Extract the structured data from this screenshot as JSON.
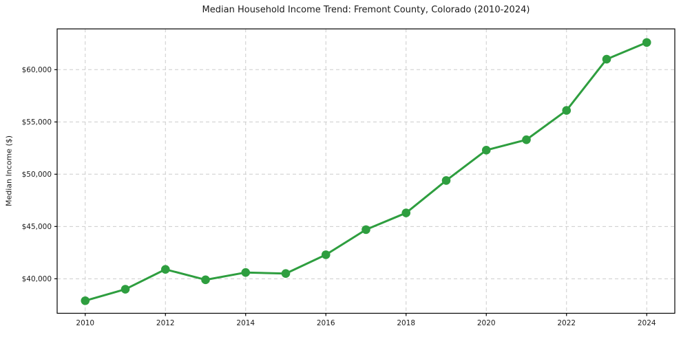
{
  "chart_data": {
    "type": "line",
    "title": "Median Household Income Trend: Fremont County, Colorado (2010-2024)",
    "xlabel": "",
    "ylabel": "Median Income ($)",
    "x": [
      2010,
      2011,
      2012,
      2013,
      2014,
      2015,
      2016,
      2017,
      2018,
      2019,
      2020,
      2021,
      2022,
      2023,
      2024
    ],
    "y": [
      37900,
      39000,
      40900,
      39900,
      40600,
      40500,
      42300,
      44700,
      46300,
      49400,
      52300,
      53300,
      56100,
      61000,
      62600
    ],
    "x_ticks": [
      2010,
      2012,
      2014,
      2016,
      2018,
      2020,
      2022,
      2024
    ],
    "x_tick_labels": [
      "2010",
      "2012",
      "2014",
      "2016",
      "2018",
      "2020",
      "2022",
      "2024"
    ],
    "y_ticks": [
      40000,
      45000,
      50000,
      55000,
      60000
    ],
    "y_tick_labels": [
      "$40,000",
      "$45,000",
      "$50,000",
      "$55,000",
      "$60,000"
    ],
    "xlim": [
      2009.3,
      2024.7
    ],
    "ylim": [
      36700,
      63900
    ],
    "grid": true,
    "grid_style": "dashed",
    "legend": false,
    "marker": "circle",
    "colors": {
      "line": "#2e9e3f",
      "marker": "#2e9e3f",
      "grid": "#cccccc",
      "spine": "#000000",
      "background": "#ffffff"
    }
  }
}
